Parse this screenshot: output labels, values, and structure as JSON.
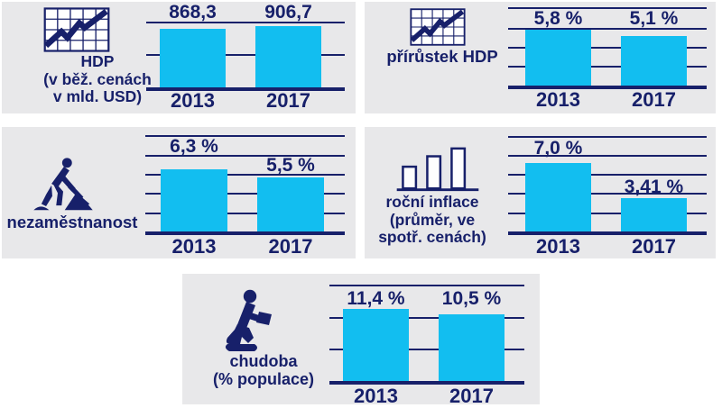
{
  "page": {
    "background": "#ffffff",
    "panel_background": "#e8e8ea"
  },
  "colors": {
    "navy": "#17206a",
    "cyan": "#12bef0",
    "icon_bar_fill": "#ffffff"
  },
  "panels": [
    {
      "id": "hdp",
      "icon": "chart-grid-icon",
      "label_lines": [
        "HDP",
        "(v běž. cenách",
        "v mld. USD)"
      ]
    },
    {
      "id": "prirustek-hdp",
      "icon": "chart-grid-icon",
      "label_lines": [
        "přírůstek HDP"
      ]
    },
    {
      "id": "nezamestnanost",
      "icon": "digger-icon",
      "label_lines": [
        "nezaměstnanost"
      ]
    },
    {
      "id": "rocni-inflace",
      "icon": "bar-chart-icon",
      "label_lines": [
        "roční inflace",
        "(průměr, ve",
        "spotř. cenách)"
      ]
    },
    {
      "id": "chudoba",
      "icon": "kneeling-person-icon",
      "label_lines": [
        "chudoba",
        "(% populace)"
      ]
    }
  ],
  "chart_data": [
    {
      "type": "bar",
      "title": "HDP (v běž. cenách v mld. USD)",
      "categories": [
        "2013",
        "2017"
      ],
      "values": [
        868.3,
        906.7
      ],
      "value_labels": [
        "868,3",
        "906,7"
      ],
      "xlabel": "",
      "ylabel": "",
      "grid": true,
      "legend": false
    },
    {
      "type": "bar",
      "title": "přírůstek HDP",
      "categories": [
        "2013",
        "2017"
      ],
      "values": [
        5.8,
        5.1
      ],
      "value_labels": [
        "5,8 %",
        "5,1 %"
      ],
      "xlabel": "",
      "ylabel": "",
      "grid": true,
      "legend": false
    },
    {
      "type": "bar",
      "title": "nezaměstnanost",
      "categories": [
        "2013",
        "2017"
      ],
      "values": [
        6.3,
        5.5
      ],
      "value_labels": [
        "6,3 %",
        "5,5 %"
      ],
      "xlabel": "",
      "ylabel": "",
      "grid": true,
      "legend": false
    },
    {
      "type": "bar",
      "title": "roční inflace (průměr, ve spotř. cenách)",
      "categories": [
        "2013",
        "2017"
      ],
      "values": [
        7.0,
        3.41
      ],
      "value_labels": [
        "7,0 %",
        "3,41 %"
      ],
      "xlabel": "",
      "ylabel": "",
      "grid": true,
      "legend": false
    },
    {
      "type": "bar",
      "title": "chudoba (% populace)",
      "categories": [
        "2013",
        "2017"
      ],
      "values": [
        11.4,
        10.5
      ],
      "value_labels": [
        "11,4 %",
        "10,5 %"
      ],
      "xlabel": "",
      "ylabel": "",
      "grid": true,
      "legend": false
    }
  ]
}
